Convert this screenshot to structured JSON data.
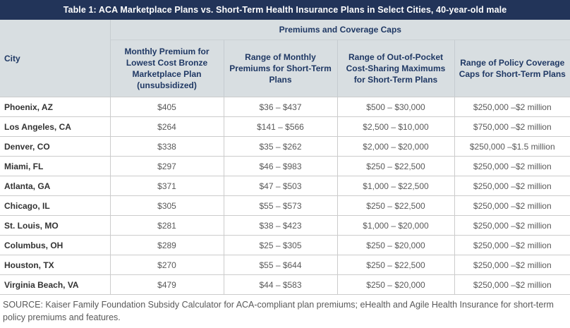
{
  "title": "Table 1: ACA Marketplace Plans vs. Short-Term Health Insurance Plans in Select Cities, 40-year-old male",
  "table": {
    "group_header": "Premiums and Coverage Caps",
    "columns": [
      "City",
      "Monthly Premium for Lowest Cost Bronze Marketplace Plan (unsubsidized)",
      "Range of Monthly Premiums for Short-Term Plans",
      "Range of Out-of-Pocket Cost-Sharing Maximums for Short-Term Plans",
      "Range of Policy Coverage Caps for Short-Term Plans"
    ],
    "rows": [
      [
        "Phoenix, AZ",
        "$405",
        "$36 – $437",
        "$500 – $30,000",
        "$250,000 –$2 million"
      ],
      [
        "Los Angeles, CA",
        "$264",
        "$141 – $566",
        "$2,500 – $10,000",
        "$750,000 –$2 million"
      ],
      [
        "Denver, CO",
        "$338",
        "$35 – $262",
        "$2,000 – $20,000",
        "$250,000 –$1.5 million"
      ],
      [
        "Miami, FL",
        "$297",
        "$46 – $983",
        "$250 – $22,500",
        "$250,000 –$2 million"
      ],
      [
        "Atlanta, GA",
        "$371",
        "$47 – $503",
        "$1,000 – $22,500",
        "$250,000 –$2 million"
      ],
      [
        "Chicago, IL",
        "$305",
        "$55 – $573",
        "$250 – $22,500",
        "$250,000 –$2 million"
      ],
      [
        "St. Louis, MO",
        "$281",
        "$38 – $423",
        "$1,000 – $20,000",
        "$250,000 –$2 million"
      ],
      [
        "Columbus, OH",
        "$289",
        "$25 – $305",
        "$250 – $20,000",
        "$250,000 –$2 million"
      ],
      [
        "Houston, TX",
        "$270",
        "$55 – $644",
        "$250 – $22,500",
        "$250,000 –$2 million"
      ],
      [
        "Virginia Beach, VA",
        "$479",
        "$44 – $583",
        "$250 – $20,000",
        "$250,000 –$2 million"
      ]
    ]
  },
  "source": "SOURCE: Kaiser Family Foundation Subsidy Calculator for ACA-compliant plan premiums; eHealth and Agile Health Insurance for short-term policy premiums and features.",
  "colors": {
    "title_bar_bg": "#223459",
    "header_bg": "#d8dee1",
    "header_text": "#1f3864",
    "body_text": "#595959",
    "city_text": "#333333",
    "border": "#cccccc"
  }
}
